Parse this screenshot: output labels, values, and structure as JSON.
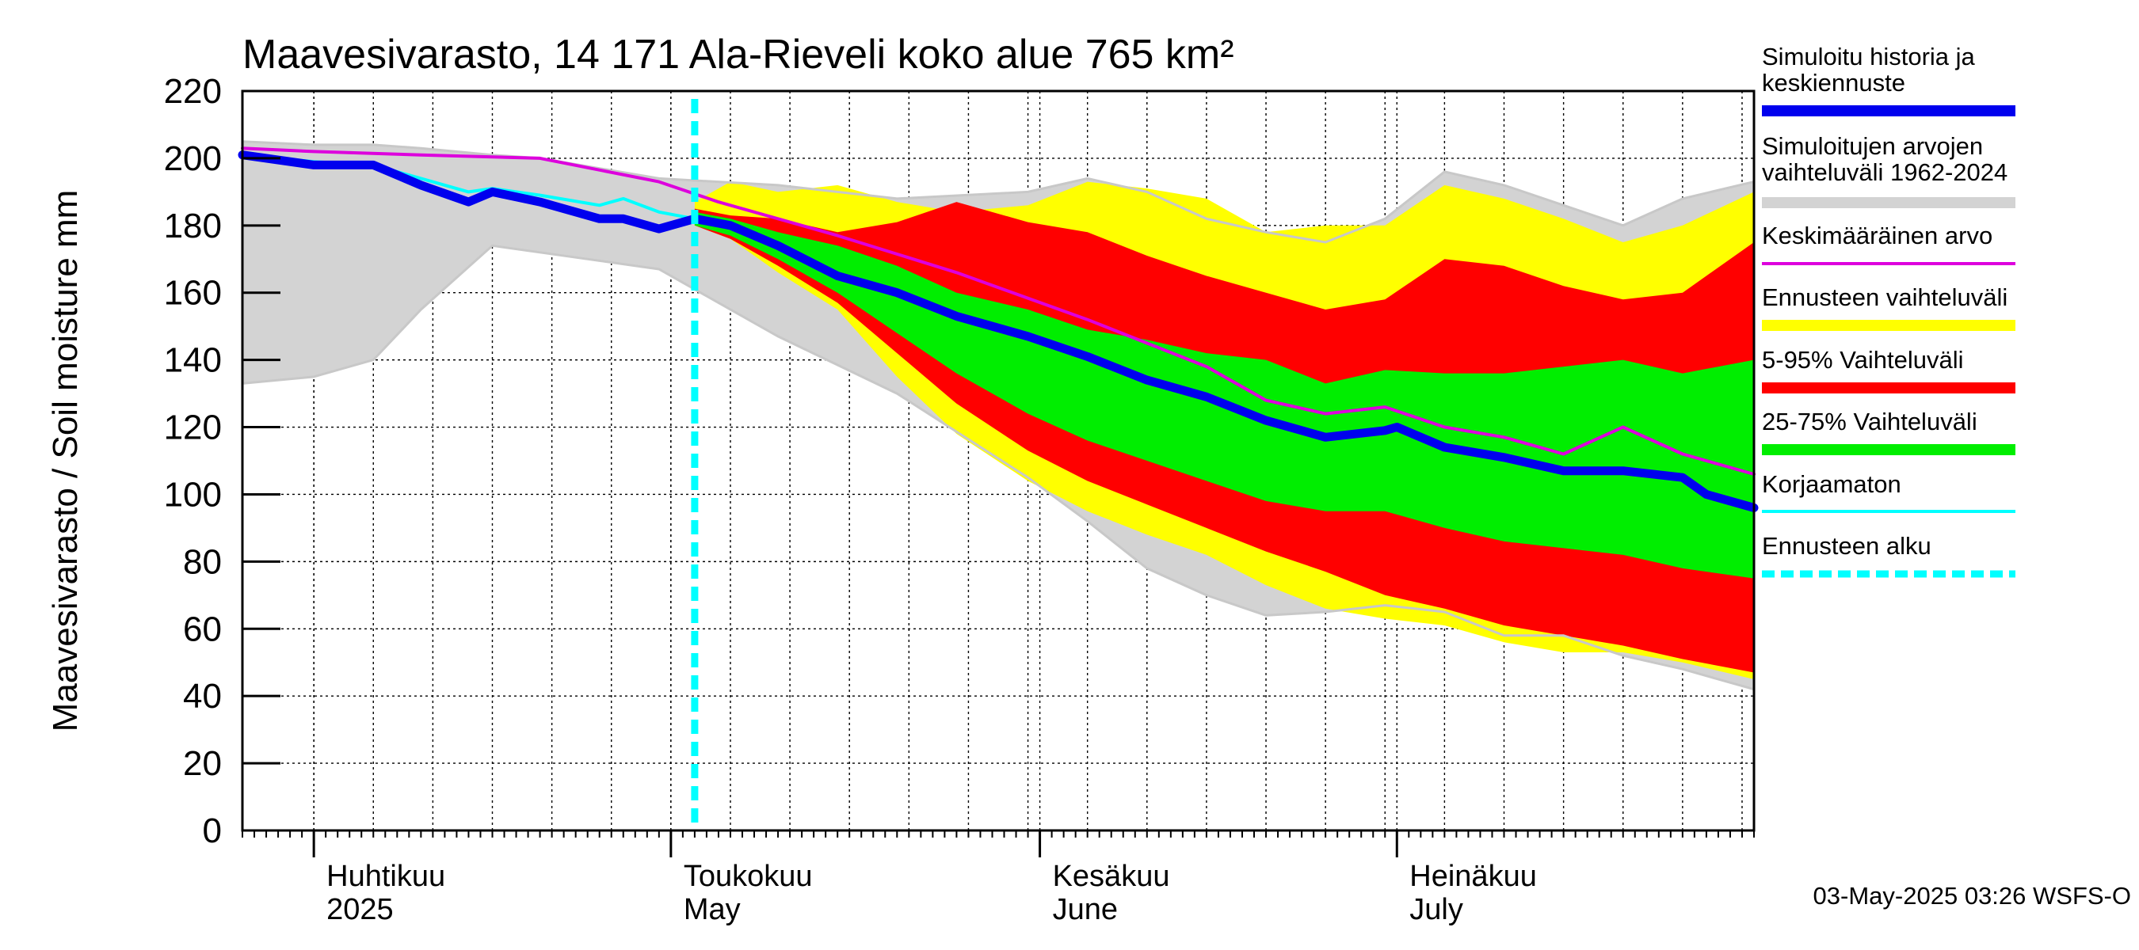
{
  "chart_data": {
    "type": "area",
    "title": "Maavesivarasto, 14 171 Ala-Rieveli koko alue 765 km²",
    "ylabel": "Maavesivarasto / Soil moisture   mm",
    "ylim": [
      0,
      220
    ],
    "yticks": [
      0,
      20,
      40,
      60,
      80,
      100,
      120,
      140,
      160,
      180,
      200,
      220
    ],
    "xlim": [
      "2025-03-26",
      "2025-07-31"
    ],
    "grid": true,
    "months": [
      {
        "label1": "Huhtikuu",
        "label2": "2025",
        "date": "2025-04-01"
      },
      {
        "label1": "Toukokuu",
        "label2": "May",
        "date": "2025-05-01"
      },
      {
        "label1": "Kesäkuu",
        "label2": "June",
        "date": "2025-06-01"
      },
      {
        "label1": "Heinäkuu",
        "label2": "July",
        "date": "2025-07-01"
      }
    ],
    "forecast_start": "2025-05-03",
    "legend_position": "right",
    "legend": [
      {
        "label": "Simuloitu historia ja keskiennuste",
        "color": "#0000ee"
      },
      {
        "label": "Simuloitujen arvojen vaihteluväli 1962-2024",
        "color": "#d3d3d3"
      },
      {
        "label": "Keskimääräinen arvo",
        "color": "#dd00dd"
      },
      {
        "label": "Ennusteen vaihteluväli",
        "color": "#ffff00"
      },
      {
        "label": "5-95% Vaihteluväli",
        "color": "#ff0000"
      },
      {
        "label": "25-75% Vaihteluväli",
        "color": "#00ee00"
      },
      {
        "label": "Korjaamaton",
        "color": "#00ffff"
      },
      {
        "label": "Ennusteen alku",
        "color": "#00ffff"
      }
    ],
    "series": [
      {
        "name": "Simuloitu historia ja keskiennuste",
        "color": "#0000ee",
        "x": [
          "2025-03-26",
          "2025-04-01",
          "2025-04-06",
          "2025-04-10",
          "2025-04-14",
          "2025-04-16",
          "2025-04-20",
          "2025-04-25",
          "2025-04-27",
          "2025-04-30",
          "2025-05-03",
          "2025-05-06",
          "2025-05-10",
          "2025-05-15",
          "2025-05-20",
          "2025-05-25",
          "2025-05-31",
          "2025-06-05",
          "2025-06-10",
          "2025-06-15",
          "2025-06-20",
          "2025-06-25",
          "2025-06-30",
          "2025-07-01",
          "2025-07-05",
          "2025-07-10",
          "2025-07-15",
          "2025-07-20",
          "2025-07-25",
          "2025-07-27",
          "2025-07-31"
        ],
        "y": [
          201,
          198,
          198,
          192,
          187,
          190,
          187,
          182,
          182,
          179,
          182,
          180,
          174,
          165,
          160,
          153,
          147,
          141,
          134,
          129,
          122,
          117,
          119,
          120,
          114,
          111,
          107,
          107,
          105,
          100,
          96
        ]
      },
      {
        "name": "Keskimääräinen arvo",
        "color": "#dd00dd",
        "x": [
          "2025-03-26",
          "2025-04-01",
          "2025-04-10",
          "2025-04-20",
          "2025-04-30",
          "2025-05-05",
          "2025-05-15",
          "2025-05-25",
          "2025-06-05",
          "2025-06-15",
          "2025-06-20",
          "2025-06-25",
          "2025-06-30",
          "2025-07-05",
          "2025-07-10",
          "2025-07-15",
          "2025-07-20",
          "2025-07-25",
          "2025-07-31"
        ],
        "y": [
          203,
          202,
          201,
          200,
          193,
          187,
          177,
          166,
          152,
          138,
          128,
          124,
          126,
          120,
          117,
          112,
          120,
          112,
          106
        ]
      },
      {
        "name": "Korjaamaton",
        "color": "#00ffff",
        "x": [
          "2025-03-26",
          "2025-04-01",
          "2025-04-06",
          "2025-04-10",
          "2025-04-14",
          "2025-04-16",
          "2025-04-20",
          "2025-04-25",
          "2025-04-27",
          "2025-04-30",
          "2025-05-03"
        ],
        "y": [
          201,
          199,
          198,
          194,
          190,
          191,
          189,
          186,
          188,
          184,
          182
        ]
      }
    ],
    "bands": [
      {
        "name": "Simuloitujen arvojen vaihteluväli 1962-2024",
        "color": "#d3d3d3",
        "x": [
          "2025-03-26",
          "2025-04-01",
          "2025-04-06",
          "2025-04-10",
          "2025-04-16",
          "2025-04-20",
          "2025-04-30",
          "2025-05-10",
          "2025-05-20",
          "2025-05-31",
          "2025-06-05",
          "2025-06-10",
          "2025-06-15",
          "2025-06-20",
          "2025-06-25",
          "2025-06-30",
          "2025-07-05",
          "2025-07-10",
          "2025-07-15",
          "2025-07-20",
          "2025-07-25",
          "2025-07-31"
        ],
        "lo": [
          133,
          135,
          140,
          155,
          174,
          172,
          167,
          147,
          130,
          105,
          92,
          78,
          70,
          64,
          65,
          67,
          65,
          58,
          58,
          52,
          48,
          42
        ],
        "hi": [
          205,
          204,
          204,
          203,
          201,
          200,
          194,
          192,
          188,
          190,
          194,
          190,
          182,
          178,
          175,
          182,
          196,
          192,
          186,
          180,
          188,
          193
        ]
      },
      {
        "name": "Ennusteen vaihteluväli",
        "color": "#ffff00",
        "x": [
          "2025-05-03",
          "2025-05-06",
          "2025-05-10",
          "2025-05-15",
          "2025-05-20",
          "2025-05-25",
          "2025-05-31",
          "2025-06-05",
          "2025-06-10",
          "2025-06-15",
          "2025-06-20",
          "2025-06-25",
          "2025-06-30",
          "2025-07-05",
          "2025-07-10",
          "2025-07-15",
          "2025-07-20",
          "2025-07-25",
          "2025-07-31"
        ],
        "lo": [
          180,
          176,
          166,
          155,
          135,
          118,
          104,
          95,
          88,
          82,
          73,
          66,
          63,
          61,
          56,
          53,
          53,
          50,
          45
        ],
        "hi": [
          187,
          193,
          190,
          192,
          187,
          184,
          186,
          193,
          191,
          188,
          178,
          180,
          180,
          192,
          188,
          182,
          175,
          180,
          190
        ]
      },
      {
        "name": "5-95% Vaihteluväli",
        "color": "#ff0000",
        "x": [
          "2025-05-03",
          "2025-05-06",
          "2025-05-10",
          "2025-05-15",
          "2025-05-20",
          "2025-05-25",
          "2025-05-31",
          "2025-06-05",
          "2025-06-10",
          "2025-06-15",
          "2025-06-20",
          "2025-06-25",
          "2025-06-30",
          "2025-07-05",
          "2025-07-10",
          "2025-07-15",
          "2025-07-20",
          "2025-07-25",
          "2025-07-31"
        ],
        "lo": [
          180,
          176,
          168,
          157,
          142,
          127,
          113,
          104,
          97,
          90,
          83,
          77,
          70,
          66,
          61,
          58,
          55,
          51,
          47
        ],
        "hi": [
          185,
          183,
          182,
          178,
          181,
          187,
          181,
          178,
          171,
          165,
          160,
          155,
          158,
          170,
          168,
          162,
          158,
          160,
          175
        ]
      },
      {
        "name": "25-75% Vaihteluväli",
        "color": "#00ee00",
        "x": [
          "2025-05-03",
          "2025-05-06",
          "2025-05-10",
          "2025-05-15",
          "2025-05-20",
          "2025-05-25",
          "2025-05-31",
          "2025-06-05",
          "2025-06-10",
          "2025-06-15",
          "2025-06-20",
          "2025-06-25",
          "2025-06-30",
          "2025-07-05",
          "2025-07-10",
          "2025-07-15",
          "2025-07-20",
          "2025-07-25",
          "2025-07-31"
        ],
        "lo": [
          180,
          177,
          170,
          160,
          148,
          136,
          124,
          116,
          110,
          104,
          98,
          95,
          95,
          90,
          86,
          84,
          82,
          78,
          75
        ],
        "hi": [
          184,
          182,
          178,
          174,
          168,
          160,
          155,
          149,
          146,
          142,
          140,
          133,
          137,
          136,
          136,
          138,
          140,
          136,
          140
        ]
      }
    ]
  },
  "footer": {
    "timestamp": "03-May-2025 03:26 WSFS-O"
  }
}
